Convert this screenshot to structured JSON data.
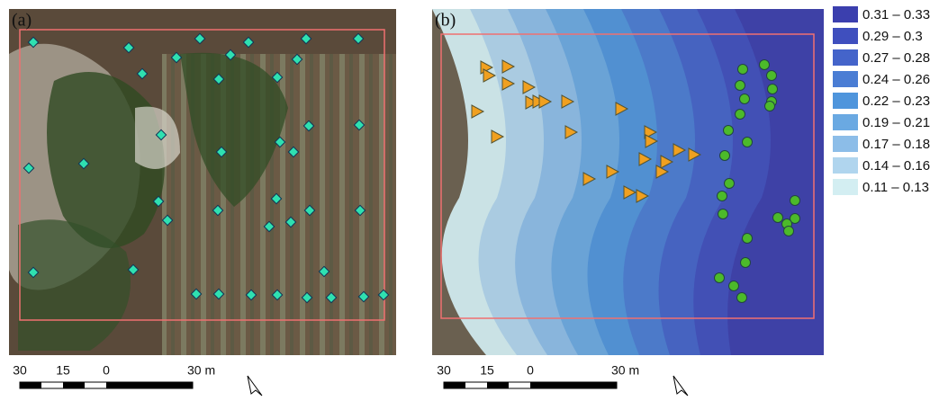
{
  "panels": [
    {
      "label": "(a)",
      "scale": [
        "30",
        "15",
        "0",
        "30 m"
      ]
    },
    {
      "label": "(b)",
      "scale": [
        "30",
        "15",
        "0",
        "30 m"
      ]
    }
  ],
  "legend": {
    "entries": [
      {
        "label": "0.31 – 0.33",
        "color": "#3b3fae"
      },
      {
        "label": "0.29 – 0.3",
        "color": "#3f4fbe"
      },
      {
        "label": "0.27 – 0.28",
        "color": "#4464ca"
      },
      {
        "label": "0.24 – 0.26",
        "color": "#4a7dd4"
      },
      {
        "label": "0.22 – 0.23",
        "color": "#4f95dc"
      },
      {
        "label": "0.19 – 0.21",
        "color": "#6aa9e2"
      },
      {
        "label": "0.17 – 0.18",
        "color": "#8cbde8"
      },
      {
        "label": "0.14 – 0.16",
        "color": "#b0d5ee"
      },
      {
        "label": "0.11 – 0.13",
        "color": "#d3eef2"
      }
    ]
  }
}
